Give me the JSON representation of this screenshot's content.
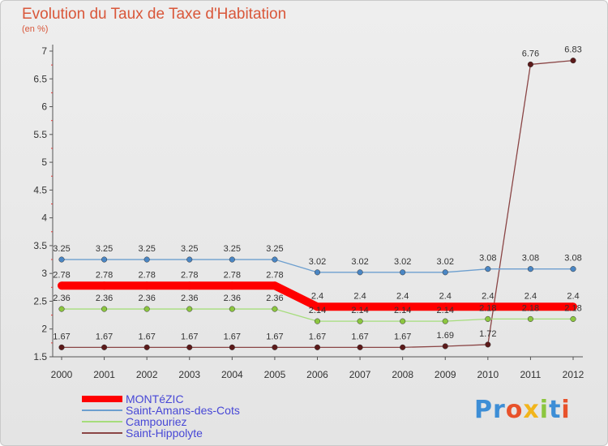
{
  "header": {
    "title": "Evolution du Taux de Taxe d'Habitation",
    "unit": "(en %)"
  },
  "logo": {
    "text": "Proxiti",
    "colors": [
      "#3d8ed6",
      "#3d8ed6",
      "#e8522b",
      "#f2b51c",
      "#8cc63f",
      "#3d8ed6",
      "#e8522b"
    ]
  },
  "chart_data": {
    "type": "line",
    "x": [
      2000,
      2001,
      2002,
      2003,
      2004,
      2005,
      2006,
      2007,
      2008,
      2009,
      2010,
      2011,
      2012
    ],
    "xticks": [
      "2000",
      "2001",
      "2002",
      "2003",
      "2004",
      "2005",
      "2006",
      "2007",
      "2008",
      "2009",
      "2010",
      "2011",
      "2012"
    ],
    "ylim": [
      1.5,
      7
    ],
    "yticks": [
      1.5,
      2,
      2.5,
      3,
      3.5,
      4,
      4.5,
      5,
      5.5,
      6,
      6.5,
      7
    ],
    "ytick_labels": [
      "1.5",
      "2",
      "2.5",
      "3",
      "3.5",
      "4",
      "4.5",
      "5",
      "5.5",
      "6",
      "6.5",
      "7"
    ],
    "grid": false,
    "legend_position": "bottom-left",
    "series": [
      {
        "name": "MONTéZIC",
        "color": "#ff0000",
        "marker_color": "#ff0000",
        "values": [
          2.78,
          2.78,
          2.78,
          2.78,
          2.78,
          2.78,
          2.4,
          2.4,
          2.4,
          2.4,
          2.4,
          2.4,
          2.4
        ],
        "labels": [
          "2.78",
          "2.78",
          "2.78",
          "2.78",
          "2.78",
          "2.78",
          "2.4",
          "2.4",
          "2.4",
          "2.4",
          "2.4",
          "2.4",
          "2.4"
        ]
      },
      {
        "name": "Saint-Amans-des-Cots",
        "color": "#6d9fcf",
        "marker_color": "#4a86c4",
        "values": [
          3.25,
          3.25,
          3.25,
          3.25,
          3.25,
          3.25,
          3.02,
          3.02,
          3.02,
          3.02,
          3.08,
          3.08,
          3.08
        ],
        "labels": [
          "3.25",
          "3.25",
          "3.25",
          "3.25",
          "3.25",
          "3.25",
          "3.02",
          "3.02",
          "3.02",
          "3.02",
          "3.08",
          "3.08",
          "3.08"
        ]
      },
      {
        "name": "Campouriez",
        "color": "#a6dd7c",
        "marker_color": "#8cc63f",
        "values": [
          2.36,
          2.36,
          2.36,
          2.36,
          2.36,
          2.36,
          2.14,
          2.14,
          2.14,
          2.14,
          2.18,
          2.18,
          2.18
        ],
        "labels": [
          "2.36",
          "2.36",
          "2.36",
          "2.36",
          "2.36",
          "2.36",
          "2.14",
          "2.14",
          "2.14",
          "2.14",
          "2.18",
          "2.18",
          "2.18"
        ]
      },
      {
        "name": "Saint-Hippolyte",
        "color": "#8a4545",
        "marker_color": "#5c1a1a",
        "values": [
          1.67,
          1.67,
          1.67,
          1.67,
          1.67,
          1.67,
          1.67,
          1.67,
          1.67,
          1.69,
          1.72,
          6.76,
          6.83
        ],
        "labels": [
          "1.67",
          "1.67",
          "1.67",
          "1.67",
          "1.67",
          "1.67",
          "1.67",
          "1.67",
          "1.67",
          "1.69",
          "1.72",
          "6.76",
          "6.83"
        ]
      }
    ]
  }
}
